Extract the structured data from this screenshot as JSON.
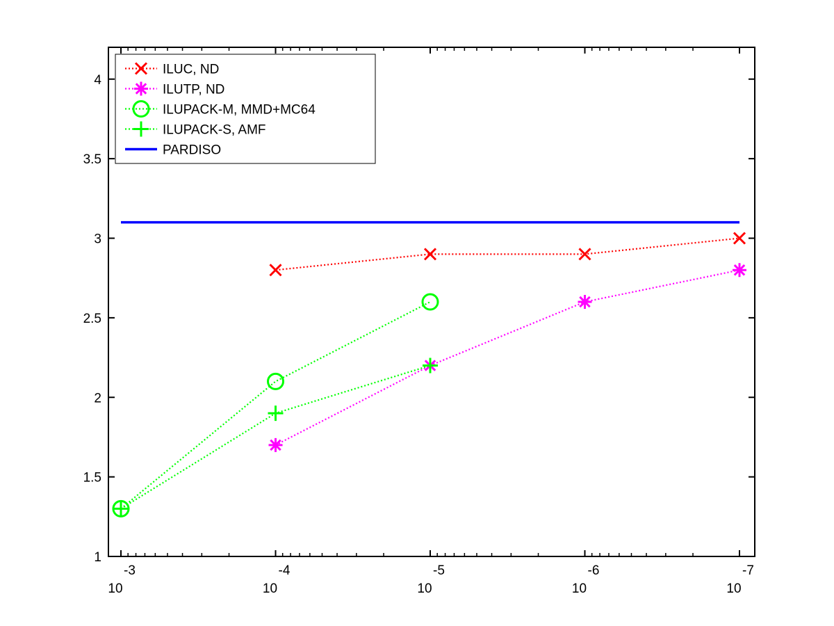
{
  "chart_data": {
    "type": "line",
    "title": "",
    "xlabel": "",
    "ylabel": "",
    "x_scale": "log-reversed",
    "x_ticks": [
      {
        "value": 0.001,
        "base": "10",
        "exp": "-3"
      },
      {
        "value": 0.0001,
        "base": "10",
        "exp": "-4"
      },
      {
        "value": 1e-05,
        "base": "10",
        "exp": "-5"
      },
      {
        "value": 1e-06,
        "base": "10",
        "exp": "-6"
      },
      {
        "value": 1e-07,
        "base": "10",
        "exp": "-7"
      }
    ],
    "y_ticks": [
      {
        "value": 1,
        "label": "1"
      },
      {
        "value": 1.5,
        "label": "1.5"
      },
      {
        "value": 2,
        "label": "2"
      },
      {
        "value": 2.5,
        "label": "2.5"
      },
      {
        "value": 3,
        "label": "3"
      },
      {
        "value": 3.5,
        "label": "3.5"
      },
      {
        "value": 4,
        "label": "4"
      }
    ],
    "ylim": [
      1,
      4.2
    ],
    "grid": false,
    "legend_position": "top-left",
    "series": [
      {
        "name": "ILUC,  ND",
        "color": "#ff0000",
        "marker": "x",
        "line": "dotted",
        "points": [
          [
            0.0001,
            2.8
          ],
          [
            1e-05,
            2.9
          ],
          [
            1e-06,
            2.9
          ],
          [
            1e-07,
            3.0
          ]
        ]
      },
      {
        "name": "ILUTP,  ND",
        "color": "#ff00ff",
        "marker": "asterisk",
        "line": "dotted",
        "points": [
          [
            0.0001,
            1.7
          ],
          [
            1e-05,
            2.2
          ],
          [
            1e-06,
            2.6
          ],
          [
            1e-07,
            2.8
          ]
        ]
      },
      {
        "name": "ILUPACK-M, MMD+MC64",
        "color": "#00ff00",
        "marker": "circle",
        "line": "dotted",
        "points": [
          [
            0.001,
            1.3
          ],
          [
            0.0001,
            2.1
          ],
          [
            1e-05,
            2.6
          ]
        ]
      },
      {
        "name": "ILUPACK-S, AMF",
        "color": "#00ff00",
        "marker": "plus",
        "line": "dotted",
        "points": [
          [
            0.001,
            1.3
          ],
          [
            0.0001,
            1.9
          ],
          [
            1e-05,
            2.2
          ]
        ]
      },
      {
        "name": "PARDISO",
        "color": "#0000ff",
        "marker": "none",
        "line": "solid",
        "points": [
          [
            0.001,
            3.1
          ],
          [
            1e-07,
            3.1
          ]
        ]
      }
    ]
  }
}
